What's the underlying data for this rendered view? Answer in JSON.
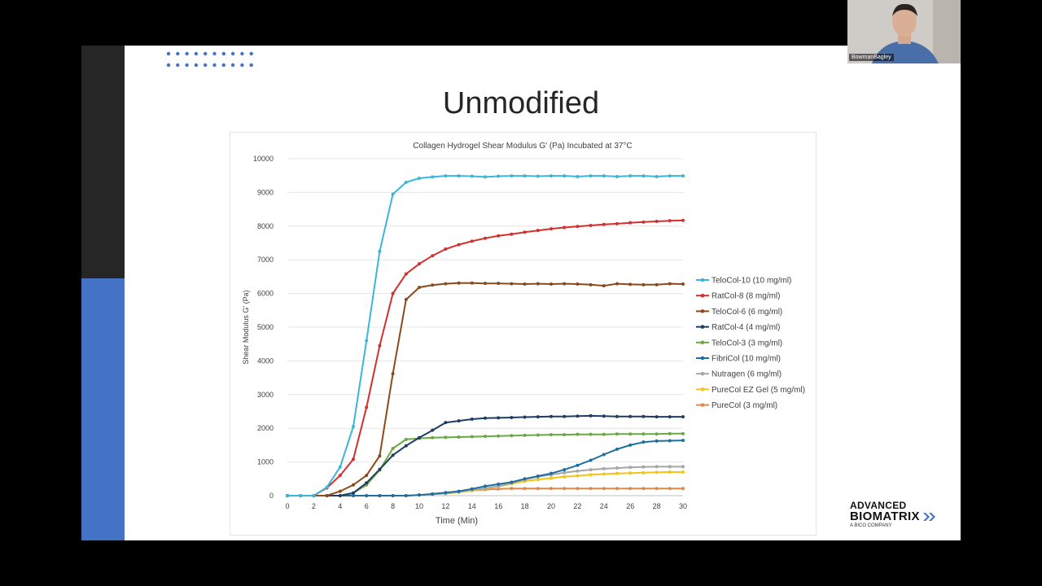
{
  "slide": {
    "title": "Unmodified"
  },
  "webcam": {
    "participant_name": "BowmanBagley"
  },
  "logo": {
    "line1": "ADVANCED",
    "line2": "BIOMATRIX",
    "tagline": "A BICO COMPANY"
  },
  "colors": {
    "accent_blue": "#4472c4",
    "dark_bar": "#262626",
    "dots": "#4472c4"
  },
  "chart_data": {
    "type": "line",
    "title": "Collagen Hydrogel Shear Modulus G' (Pa) Incubated at 37°C",
    "xlabel": "Time (Min)",
    "ylabel": "Shear Modulus G' (Pa)",
    "xlim": [
      0,
      30
    ],
    "ylim": [
      0,
      10000
    ],
    "x_ticks": [
      0,
      2,
      4,
      6,
      8,
      10,
      12,
      14,
      16,
      18,
      20,
      22,
      24,
      26,
      28,
      30
    ],
    "y_ticks": [
      0,
      1000,
      2000,
      3000,
      4000,
      5000,
      6000,
      7000,
      8000,
      9000,
      10000
    ],
    "grid": "horizontal",
    "legend_position": "right",
    "x": [
      0,
      1,
      2,
      3,
      4,
      5,
      6,
      7,
      8,
      9,
      10,
      11,
      12,
      13,
      14,
      15,
      16,
      17,
      18,
      19,
      20,
      21,
      22,
      23,
      24,
      25,
      26,
      27,
      28,
      29,
      30
    ],
    "series": [
      {
        "name": "TeloCol-10 (10 mg/ml)",
        "color": "#3bb5d9",
        "values": [
          0,
          0,
          0,
          250,
          850,
          2050,
          4600,
          7250,
          8950,
          9300,
          9420,
          9460,
          9490,
          9490,
          9480,
          9460,
          9480,
          9490,
          9490,
          9480,
          9490,
          9490,
          9470,
          9490,
          9490,
          9470,
          9490,
          9490,
          9470,
          9490,
          9490
        ]
      },
      {
        "name": "RatCol-8 (8 mg/ml)",
        "color": "#d42f2f",
        "values": [
          0,
          0,
          0,
          230,
          600,
          1080,
          2620,
          4450,
          6000,
          6580,
          6880,
          7120,
          7320,
          7450,
          7550,
          7640,
          7710,
          7760,
          7820,
          7870,
          7920,
          7960,
          7990,
          8020,
          8050,
          8070,
          8100,
          8120,
          8140,
          8160,
          8170
        ]
      },
      {
        "name": "TeloCol-6 (6 mg/ml)",
        "color": "#8b4a1c",
        "values": [
          0,
          0,
          0,
          0,
          130,
          320,
          600,
          1180,
          3620,
          5820,
          6180,
          6250,
          6290,
          6310,
          6310,
          6300,
          6300,
          6290,
          6280,
          6290,
          6280,
          6290,
          6280,
          6260,
          6230,
          6290,
          6270,
          6260,
          6260,
          6290,
          6280
        ]
      },
      {
        "name": "RatCol-4 (4 mg/ml)",
        "color": "#1f3d64",
        "values": [
          0,
          0,
          0,
          0,
          0,
          80,
          380,
          780,
          1200,
          1480,
          1720,
          1940,
          2170,
          2220,
          2270,
          2300,
          2310,
          2320,
          2330,
          2340,
          2350,
          2350,
          2360,
          2370,
          2360,
          2350,
          2350,
          2350,
          2340,
          2340,
          2340
        ]
      },
      {
        "name": "TeloCol-3 (3 mg/ml)",
        "color": "#6aa842",
        "values": [
          0,
          0,
          0,
          0,
          0,
          80,
          320,
          760,
          1400,
          1670,
          1700,
          1720,
          1730,
          1740,
          1750,
          1760,
          1770,
          1780,
          1790,
          1800,
          1810,
          1810,
          1820,
          1820,
          1820,
          1830,
          1830,
          1830,
          1830,
          1840,
          1840
        ]
      },
      {
        "name": "FibriCol (10 mg/ml)",
        "color": "#1e6fa0",
        "values": [
          0,
          0,
          0,
          0,
          0,
          0,
          0,
          0,
          0,
          0,
          20,
          50,
          90,
          130,
          200,
          280,
          340,
          400,
          500,
          580,
          660,
          770,
          900,
          1050,
          1220,
          1380,
          1500,
          1590,
          1620,
          1630,
          1640
        ]
      },
      {
        "name": "Nutragen (6 mg/ml)",
        "color": "#a6a6a6",
        "values": [
          0,
          0,
          0,
          0,
          0,
          0,
          0,
          0,
          0,
          0,
          20,
          40,
          70,
          110,
          170,
          220,
          280,
          380,
          480,
          560,
          620,
          680,
          730,
          770,
          800,
          820,
          840,
          850,
          860,
          860,
          860
        ]
      },
      {
        "name": "PureCol EZ Gel (5 mg/ml)",
        "color": "#f2c318",
        "values": [
          0,
          0,
          0,
          0,
          0,
          0,
          0,
          0,
          0,
          0,
          20,
          40,
          60,
          100,
          150,
          210,
          270,
          350,
          430,
          480,
          520,
          560,
          590,
          620,
          640,
          660,
          670,
          680,
          690,
          700,
          700
        ]
      },
      {
        "name": "PureCol (3 mg/ml)",
        "color": "#e08a4a",
        "values": [
          0,
          0,
          0,
          0,
          0,
          0,
          0,
          0,
          0,
          0,
          20,
          40,
          70,
          110,
          150,
          180,
          200,
          210,
          210,
          210,
          210,
          210,
          210,
          210,
          210,
          210,
          210,
          210,
          210,
          210,
          210
        ]
      }
    ]
  }
}
